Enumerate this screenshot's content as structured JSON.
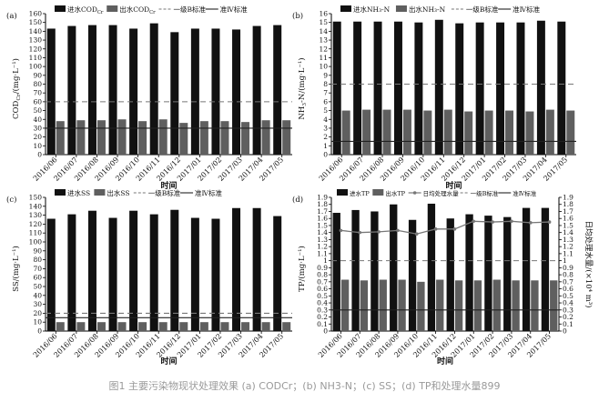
{
  "months": [
    "2016/06",
    "2016/07",
    "2016/08",
    "2016/09",
    "2016/10",
    "2016/11",
    "2016/12",
    "2017/01",
    "2017/02",
    "2017/03",
    "2017/04",
    "2017/05"
  ],
  "caption": "图1 主要污染物现状处理效果 (a) CODCr；(b) NH3-N；(c) SS；(d) TP和处理水量899",
  "colors": {
    "influent": "#111111",
    "effluent": "#5f5f5f",
    "gradeB": "#777777",
    "classIV": "#222222",
    "flow": "#777777"
  },
  "chart_data": [
    {
      "panel": "(a)",
      "type": "bar",
      "title": "",
      "xlabel": "时间",
      "ylabel": "COD",
      "ylabel_sub": "Cr",
      "ylabel_unit": "/(mg·L⁻¹)",
      "ylim": [
        0,
        160
      ],
      "yticks": [
        0,
        10,
        20,
        30,
        40,
        50,
        60,
        70,
        80,
        90,
        100,
        110,
        120,
        130,
        140,
        150,
        160
      ],
      "legend": {
        "position": "top",
        "items": [
          "进水COD",
          "出水COD",
          "一级B标准",
          "准Ⅳ标准"
        ],
        "item_sub": [
          "Cr",
          "Cr",
          "",
          ""
        ]
      },
      "series": [
        {
          "name": "进水COD",
          "values": [
            143,
            146,
            147,
            147,
            143,
            149,
            139,
            143,
            143,
            142,
            146,
            147
          ]
        },
        {
          "name": "出水COD",
          "values": [
            38,
            39,
            39,
            40,
            38,
            40,
            36,
            38,
            38,
            37,
            39,
            39
          ]
        }
      ],
      "reference_lines": [
        {
          "name": "一级B标准",
          "value": 60,
          "style": "dashed"
        },
        {
          "name": "准Ⅳ标准",
          "value": 30,
          "style": "solid"
        }
      ]
    },
    {
      "panel": "(b)",
      "type": "bar",
      "title": "",
      "xlabel": "时间",
      "ylabel": "NH",
      "ylabel_sub": "3",
      "ylabel_unit": "-N/(mg·L⁻¹)",
      "ylim": [
        0,
        16
      ],
      "yticks": [
        0,
        1,
        2,
        3,
        4,
        5,
        6,
        7,
        8,
        9,
        10,
        11,
        12,
        13,
        14,
        15,
        16
      ],
      "legend": {
        "position": "top",
        "items": [
          "进水NH₃-N",
          "出水NH₃-N",
          "一级B标准",
          "准Ⅳ标准"
        ],
        "item_sub": [
          "",
          "",
          "",
          ""
        ]
      },
      "series": [
        {
          "name": "进水NH₃-N",
          "values": [
            15.1,
            15.1,
            15.1,
            15.1,
            15.0,
            15.3,
            14.9,
            15.0,
            15.0,
            15.0,
            15.2,
            15.1
          ]
        },
        {
          "name": "出水NH₃-N",
          "values": [
            5.0,
            5.1,
            5.1,
            5.1,
            5.0,
            5.1,
            4.9,
            5.0,
            5.0,
            4.9,
            5.1,
            5.0
          ]
        }
      ],
      "reference_lines": [
        {
          "name": "一级B标准",
          "value": 8,
          "style": "dashed"
        },
        {
          "name": "准Ⅳ标准",
          "value": 1.5,
          "style": "solid"
        }
      ]
    },
    {
      "panel": "(c)",
      "type": "bar",
      "title": "",
      "xlabel": "时间",
      "ylabel": "SS/(mg·L⁻¹)",
      "ylabel_sub": "",
      "ylabel_unit": "",
      "ylim": [
        0,
        150
      ],
      "yticks": [
        0,
        10,
        20,
        30,
        40,
        50,
        60,
        70,
        80,
        90,
        100,
        110,
        120,
        130,
        140,
        150
      ],
      "legend": {
        "position": "top",
        "items": [
          "进水SS",
          "出水SS",
          "一级B标准",
          "准Ⅳ标准"
        ],
        "item_sub": [
          "",
          "",
          "",
          ""
        ]
      },
      "series": [
        {
          "name": "进水SS",
          "values": [
            126,
            131,
            135,
            127,
            135,
            131,
            136,
            127,
            126,
            138,
            138,
            129
          ]
        },
        {
          "name": "出水SS",
          "values": [
            10,
            10,
            10,
            10,
            10,
            10,
            10,
            10,
            10,
            10,
            10,
            10
          ]
        }
      ],
      "reference_lines": [
        {
          "name": "一级B标准",
          "value": 20,
          "style": "dashed"
        },
        {
          "name": "准Ⅳ标准",
          "value": 15,
          "style": "solid"
        }
      ]
    },
    {
      "panel": "(d)",
      "type": "bar",
      "title": "",
      "xlabel": "时间",
      "ylabel": "TP/(mg·L⁻¹)",
      "ylabel_sub": "",
      "ylabel_unit": "",
      "y2label": "日均处理水量/(×10⁴ m³)",
      "ylim": [
        0,
        1.9
      ],
      "yticks": [
        0,
        0.1,
        0.2,
        0.3,
        0.4,
        0.5,
        0.6,
        0.7,
        0.8,
        0.9,
        1.0,
        1.1,
        1.2,
        1.3,
        1.4,
        1.5,
        1.6,
        1.7,
        1.8,
        1.9
      ],
      "ytick_labels": [
        "0",
        "0.1",
        "0.2",
        "0.3",
        "0.4",
        "0.5",
        "0.6",
        "0.7",
        "0.8",
        "0.9",
        "1",
        "1.1",
        "1.2",
        "1.3",
        "1.4",
        "1.5",
        "1.6",
        "1.7",
        "1.8",
        "1.9"
      ],
      "y2lim": [
        0,
        1.9
      ],
      "legend": {
        "position": "top",
        "items": [
          "进水TP",
          "出水TP",
          "日均处理水量",
          "一级B标准",
          "准Ⅳ标准"
        ],
        "item_sub": [
          "",
          "",
          "",
          "",
          ""
        ]
      },
      "series": [
        {
          "name": "进水TP",
          "values": [
            1.68,
            1.72,
            1.7,
            1.8,
            1.58,
            1.81,
            1.6,
            1.66,
            1.64,
            1.62,
            1.75,
            1.75
          ]
        },
        {
          "name": "出水TP",
          "values": [
            0.73,
            0.72,
            0.73,
            0.73,
            0.7,
            0.73,
            0.72,
            0.72,
            0.73,
            0.72,
            0.72,
            0.72
          ]
        },
        {
          "name": "日均处理水量",
          "values": [
            1.43,
            1.4,
            1.41,
            1.43,
            1.38,
            1.45,
            1.45,
            1.56,
            1.55,
            1.56,
            1.54,
            1.55
          ],
          "axis": "right"
        }
      ],
      "reference_lines": [
        {
          "name": "一级B标准",
          "value": 1.0,
          "style": "dashed"
        },
        {
          "name": "准Ⅳ标准",
          "value": 0.3,
          "style": "solid"
        }
      ]
    }
  ]
}
